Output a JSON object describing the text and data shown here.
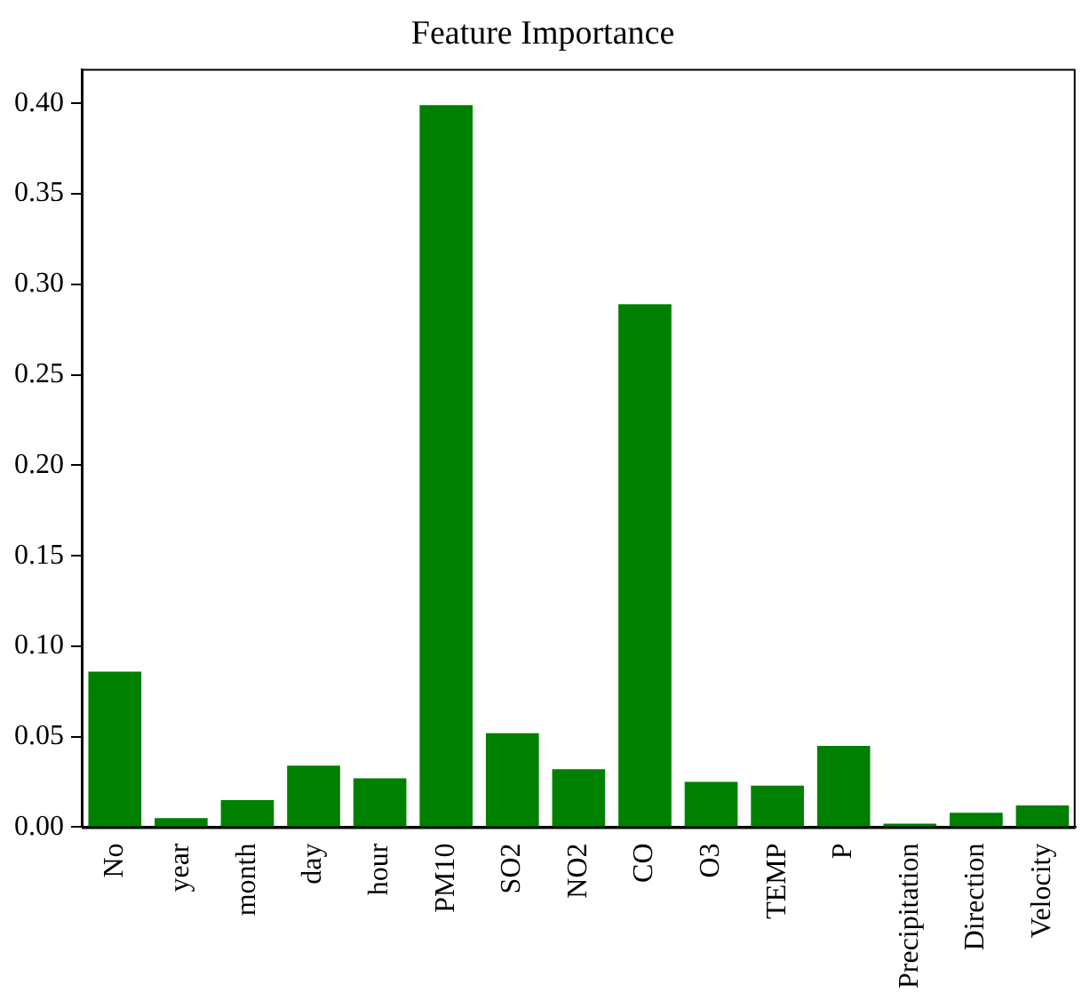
{
  "chart_data": {
    "type": "bar",
    "title": "Feature Importance",
    "categories": [
      "No",
      "year",
      "month",
      "day",
      "hour",
      "PM10",
      "SO2",
      "NO2",
      "CO",
      "O3",
      "TEMP",
      "P",
      "Precipitation",
      "Direction",
      "Velocity"
    ],
    "values": [
      0.086,
      0.005,
      0.015,
      0.034,
      0.027,
      0.399,
      0.052,
      0.032,
      0.289,
      0.025,
      0.023,
      0.045,
      0.002,
      0.008,
      0.012
    ],
    "color": "#008000",
    "ylim": [
      0,
      0.419
    ],
    "yticks": [
      {
        "value": 0,
        "label": "0.00"
      },
      {
        "value": 0.05,
        "label": "0.05"
      },
      {
        "value": 0.1,
        "label": "0.10"
      },
      {
        "value": 0.15,
        "label": "0.15"
      },
      {
        "value": 0.2,
        "label": "0.20"
      },
      {
        "value": 0.25,
        "label": "0.25"
      },
      {
        "value": 0.3,
        "label": "0.30"
      },
      {
        "value": 0.35,
        "label": "0.35"
      },
      {
        "value": 0.4,
        "label": "0.40"
      }
    ],
    "grid": false
  }
}
